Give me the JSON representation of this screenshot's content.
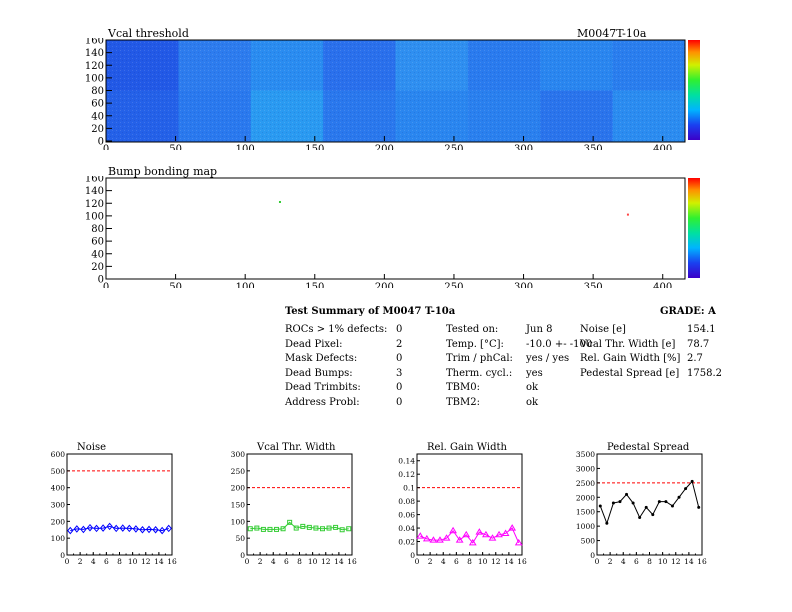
{
  "header": {
    "left_title": "Vcal threshold",
    "right_title": "M0047T-10a"
  },
  "bump_title": "Bump bonding map",
  "heatmap_axes": {
    "x_ticks": [
      "0",
      "50",
      "100",
      "150",
      "200",
      "250",
      "300",
      "350",
      "400"
    ],
    "y_ticks": [
      "0",
      "20",
      "40",
      "60",
      "80",
      "100",
      "120",
      "140",
      "160"
    ]
  },
  "summary": {
    "title": "Test Summary of M0047   T-10a",
    "grade": "GRADE:  A",
    "col1": [
      {
        "label": "ROCs > 1% defects:",
        "value": "0"
      },
      {
        "label": "Dead Pixel:",
        "value": "2"
      },
      {
        "label": "Mask Defects:",
        "value": "0"
      },
      {
        "label": "Dead Bumps:",
        "value": "3"
      },
      {
        "label": "Dead Trimbits:",
        "value": "0"
      },
      {
        "label": "Address Probl:",
        "value": "0"
      }
    ],
    "col2": [
      {
        "label": "Tested on:",
        "value": "Jun 8"
      },
      {
        "label": "Temp. [°C]:",
        "value": "-10.0 +- -100"
      },
      {
        "label": "Trim / phCal:",
        "value": "yes / yes"
      },
      {
        "label": "Therm. cycl.:",
        "value": "yes"
      },
      {
        "label": "TBM0:",
        "value": "ok"
      },
      {
        "label": "TBM2:",
        "value": "ok"
      }
    ],
    "col3": [
      {
        "label": "Noise [e]",
        "value": "154.1"
      },
      {
        "label": "Vcal Thr. Width [e]",
        "value": "78.7"
      },
      {
        "label": "Rel. Gain Width [%]",
        "value": "2.7"
      },
      {
        "label": "Pedestal Spread [e]",
        "value": "1758.2"
      }
    ]
  },
  "chart_data": [
    {
      "type": "heatmap",
      "title": "Vcal threshold",
      "x_range": [
        0,
        416
      ],
      "y_range": [
        0,
        160
      ],
      "colorbar_ticks": [
        "80",
        "100",
        "120",
        "140",
        "160",
        "180",
        "200",
        "220",
        "240"
      ]
    },
    {
      "type": "heatmap",
      "title": "Bump bonding map",
      "x_range": [
        0,
        416
      ],
      "y_range": [
        0,
        160
      ],
      "points": [
        {
          "x": 125,
          "y": 122,
          "color": "#33cc33"
        },
        {
          "x": 375,
          "y": 102,
          "color": "#ff4444"
        }
      ],
      "colorbar_ticks": [
        "-2",
        "-1.5",
        "-1",
        "-0.5",
        "0",
        "0.5",
        "1",
        "1.5",
        "2"
      ]
    },
    {
      "type": "line",
      "title": "Noise",
      "color": "#0000ff",
      "marker": "diamond",
      "xlim": [
        0,
        16
      ],
      "ylim": [
        0,
        600
      ],
      "cut": 500,
      "x_ticks": [
        "0",
        "2",
        "4",
        "6",
        "8",
        "10",
        "12",
        "14",
        "16"
      ],
      "y_ticks": [
        "0",
        "100",
        "200",
        "300",
        "400",
        "500",
        "600"
      ],
      "y_tick_values": [
        0,
        100,
        200,
        300,
        400,
        500,
        600
      ],
      "x": [
        0,
        1,
        2,
        3,
        4,
        5,
        6,
        7,
        8,
        9,
        10,
        11,
        12,
        13,
        14,
        15
      ],
      "values": [
        145,
        155,
        152,
        162,
        158,
        160,
        170,
        158,
        160,
        158,
        155,
        150,
        152,
        150,
        145,
        158
      ]
    },
    {
      "type": "line",
      "title": "Vcal Thr. Width",
      "color": "#33cc33",
      "marker": "square",
      "xlim": [
        0,
        16
      ],
      "ylim": [
        0,
        300
      ],
      "cut": 200,
      "x_ticks": [
        "0",
        "2",
        "4",
        "6",
        "8",
        "10",
        "12",
        "14",
        "16"
      ],
      "y_ticks": [
        "0",
        "50",
        "100",
        "150",
        "200",
        "250",
        "300"
      ],
      "y_tick_values": [
        0,
        50,
        100,
        150,
        200,
        250,
        300
      ],
      "x": [
        0,
        1,
        2,
        3,
        4,
        5,
        6,
        7,
        8,
        9,
        10,
        11,
        12,
        13,
        14,
        15
      ],
      "values": [
        78,
        80,
        76,
        76,
        76,
        78,
        97,
        80,
        85,
        82,
        80,
        78,
        80,
        82,
        75,
        78
      ]
    },
    {
      "type": "line",
      "title": "Rel. Gain Width",
      "color": "#ff00ff",
      "marker": "triangle",
      "xlim": [
        0,
        16
      ],
      "ylim": [
        0,
        0.15
      ],
      "cut": 0.1,
      "x_ticks": [
        "0",
        "2",
        "4",
        "6",
        "8",
        "10",
        "12",
        "14",
        "16"
      ],
      "y_ticks": [
        "0",
        "0.02",
        "0.04",
        "0.06",
        "0.08",
        "0.1",
        "0.12",
        "0.14"
      ],
      "y_tick_values": [
        0,
        0.02,
        0.04,
        0.06,
        0.08,
        0.1,
        0.12,
        0.14
      ],
      "x": [
        0,
        1,
        2,
        3,
        4,
        5,
        6,
        7,
        8,
        9,
        10,
        11,
        12,
        13,
        14,
        15
      ],
      "values": [
        0.028,
        0.024,
        0.022,
        0.022,
        0.025,
        0.036,
        0.022,
        0.03,
        0.018,
        0.034,
        0.03,
        0.025,
        0.03,
        0.032,
        0.04,
        0.018
      ]
    },
    {
      "type": "line",
      "title": "Pedestal Spread",
      "color": "#000000",
      "marker": "dot",
      "xlim": [
        0,
        16
      ],
      "ylim": [
        0,
        3500
      ],
      "cut": 2500,
      "x_ticks": [
        "0",
        "2",
        "4",
        "6",
        "8",
        "10",
        "12",
        "14",
        "16"
      ],
      "y_ticks": [
        "0",
        "500",
        "1000",
        "1500",
        "2000",
        "2500",
        "3000",
        "3500"
      ],
      "y_tick_values": [
        0,
        500,
        1000,
        1500,
        2000,
        2500,
        3000,
        3500
      ],
      "x": [
        0,
        1,
        2,
        3,
        4,
        5,
        6,
        7,
        8,
        9,
        10,
        11,
        12,
        13,
        14,
        15
      ],
      "values": [
        1700,
        1100,
        1800,
        1850,
        2100,
        1800,
        1300,
        1650,
        1400,
        1850,
        1850,
        1700,
        2000,
        2300,
        2550,
        1650
      ]
    }
  ]
}
